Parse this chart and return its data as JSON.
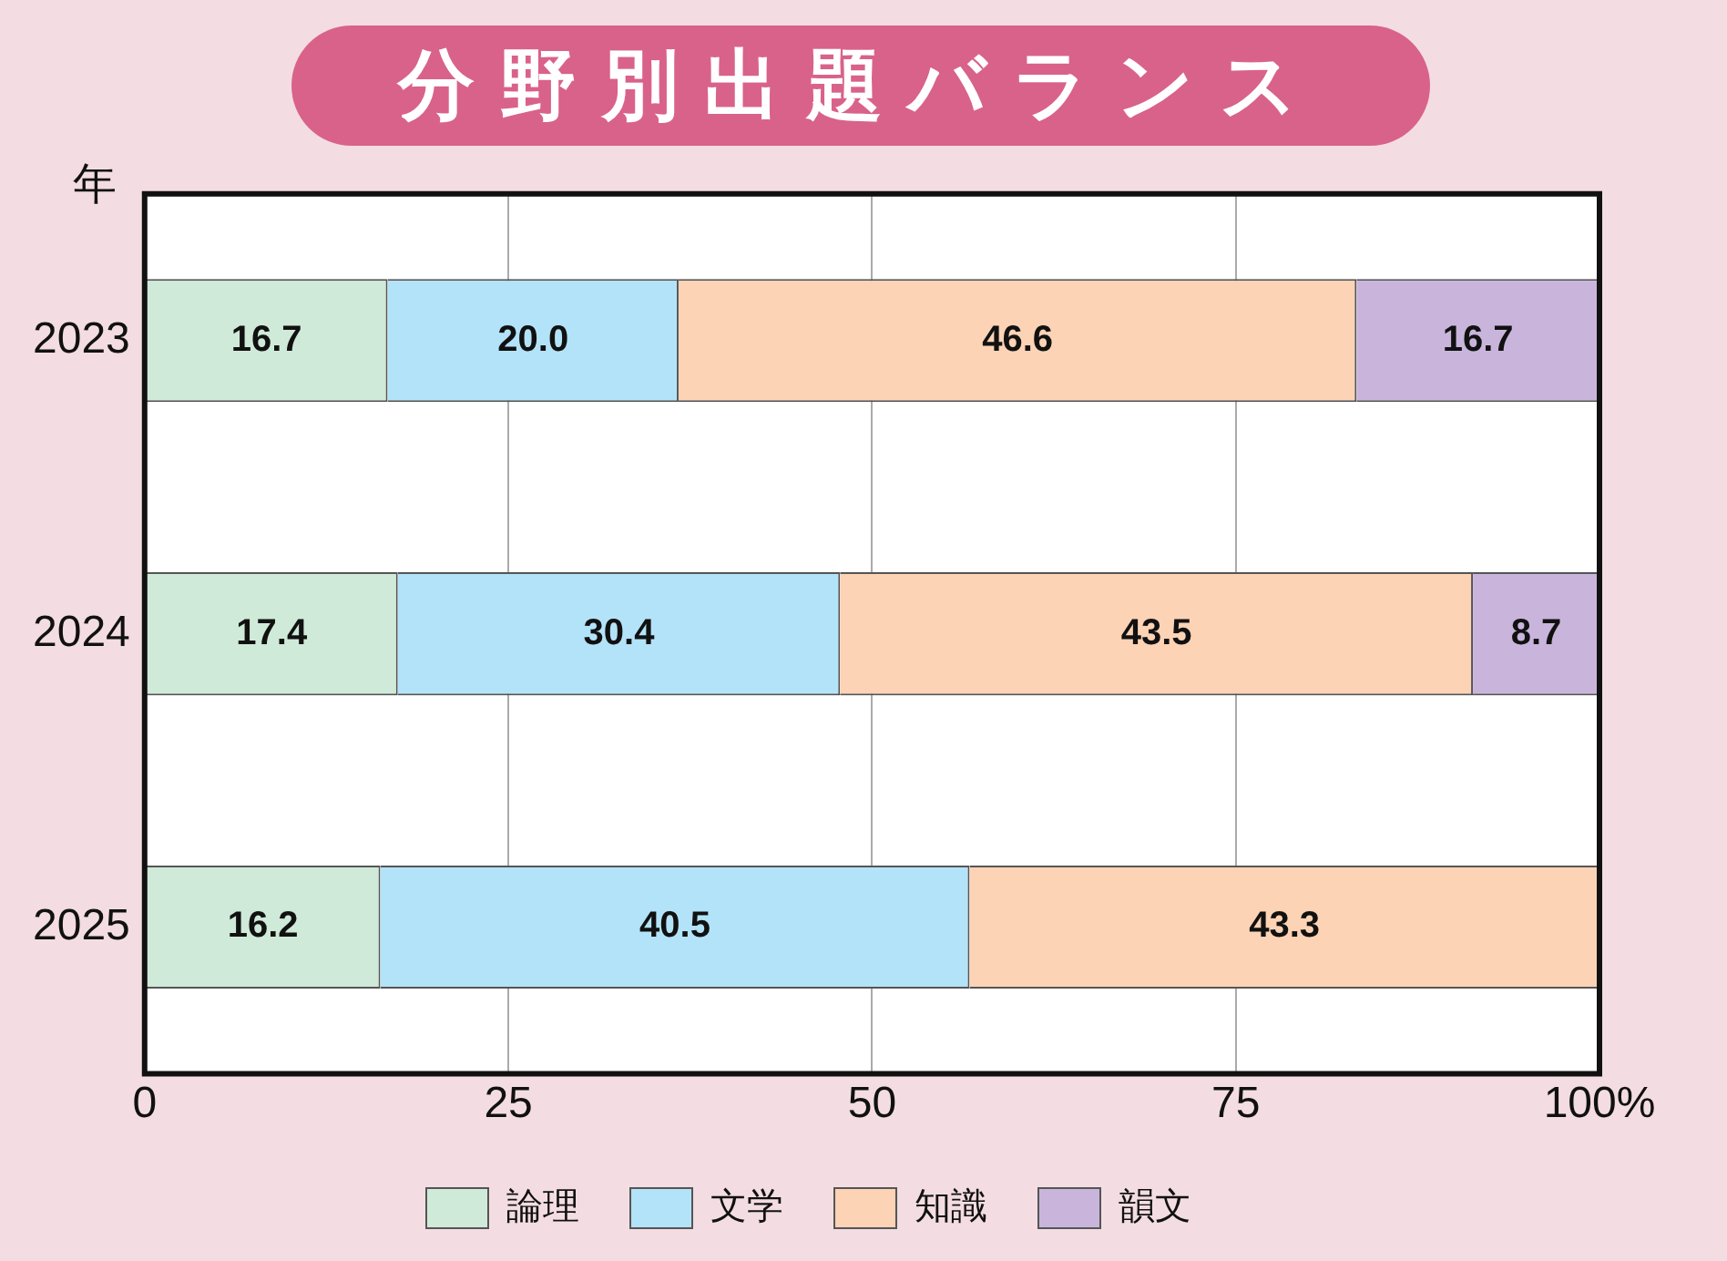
{
  "chart_data": {
    "type": "bar",
    "orientation": "horizontal",
    "stacked": true,
    "title": "分野別出題バランス",
    "ylabel": "年",
    "categories": [
      "2023",
      "2024",
      "2025"
    ],
    "series": [
      {
        "name": "論理",
        "color": "#cfead8",
        "values": [
          16.7,
          17.4,
          16.2
        ]
      },
      {
        "name": "文学",
        "color": "#b3e3f8",
        "values": [
          20.0,
          30.4,
          40.5
        ],
        "value_labels": [
          "20.0",
          "30.4",
          "40.5"
        ]
      },
      {
        "name": "知識",
        "color": "#fcd3b5",
        "values": [
          46.6,
          43.5,
          43.3
        ]
      },
      {
        "name": "韻文",
        "color": "#c9b5dc",
        "values": [
          16.7,
          8.7,
          null
        ]
      }
    ],
    "xlim": [
      0,
      100
    ],
    "xticks": [
      0,
      25,
      50,
      75,
      {
        "value": 100,
        "label": "100%"
      }
    ],
    "grid": "x",
    "legend": "bottom",
    "data_labels": true
  }
}
